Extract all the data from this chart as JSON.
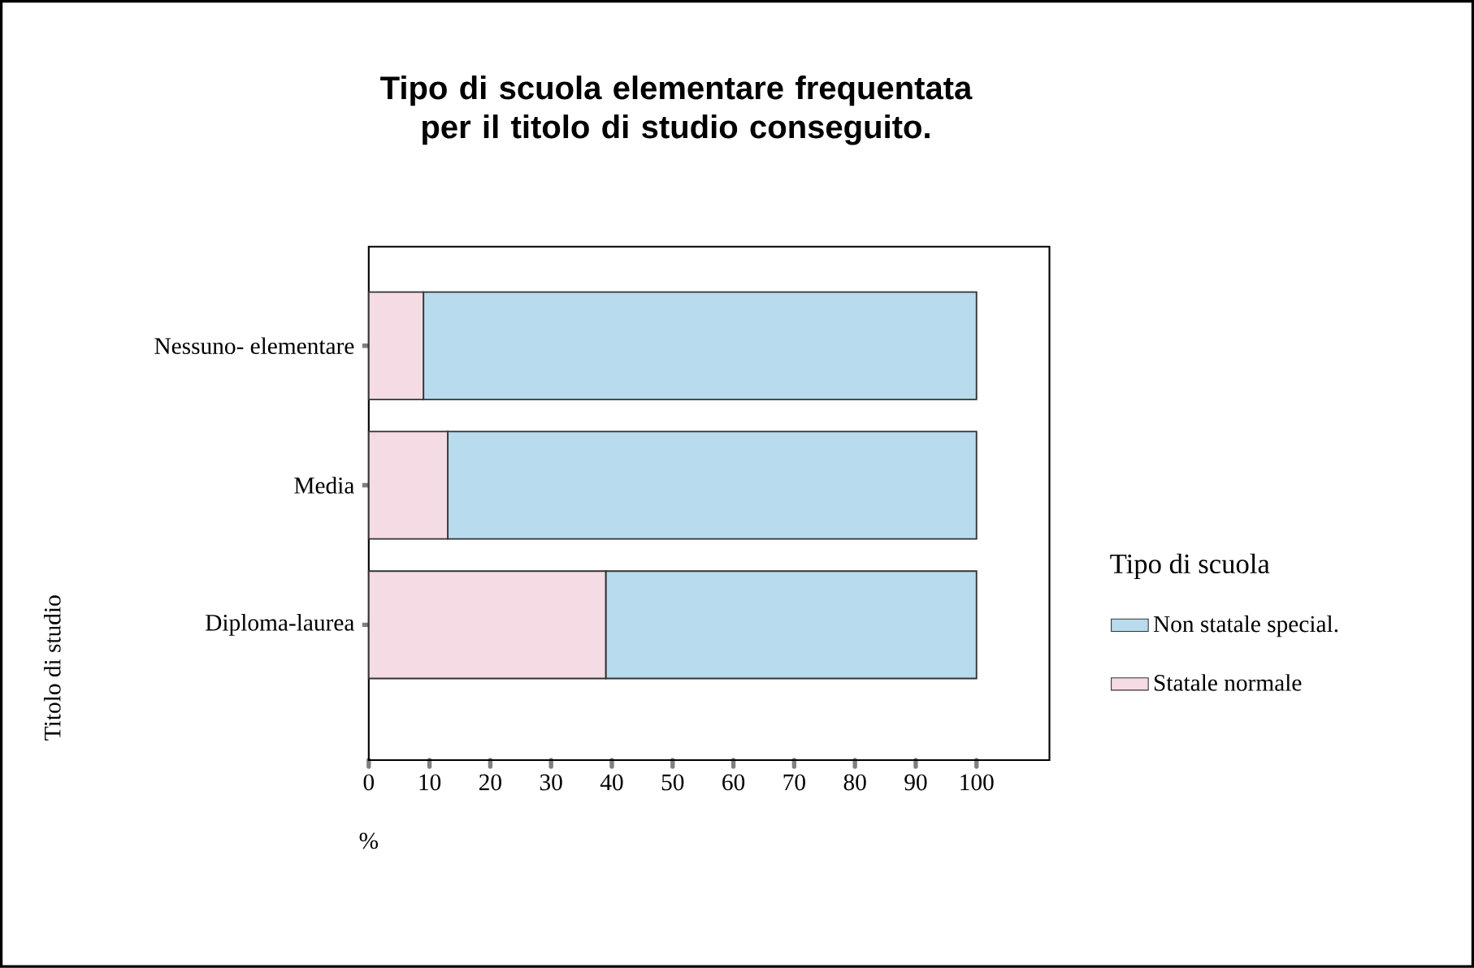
{
  "chart_data": {
    "type": "bar",
    "orientation": "horizontal",
    "stacked": true,
    "title": "Tipo di scuola elementare frequentata\nper il titolo di studio conseguito.",
    "annotations": [
      "%"
    ],
    "ylabel": "Titolo di studio",
    "legend_title": "Tipo di scuola",
    "categories": [
      "Nessuno- elementare",
      "Media",
      "Diploma-laurea"
    ],
    "series": [
      {
        "name": "Statale normale",
        "color": "#f5dbe4",
        "values": [
          9,
          13,
          39
        ]
      },
      {
        "name": "Non statale special.",
        "color": "#b8dbed",
        "values": [
          91,
          87,
          61
        ]
      }
    ],
    "xlim": [
      0,
      112
    ],
    "xticks": [
      0,
      10,
      20,
      30,
      40,
      50,
      60,
      70,
      80,
      90,
      100
    ],
    "grid": false,
    "legend": "right"
  }
}
